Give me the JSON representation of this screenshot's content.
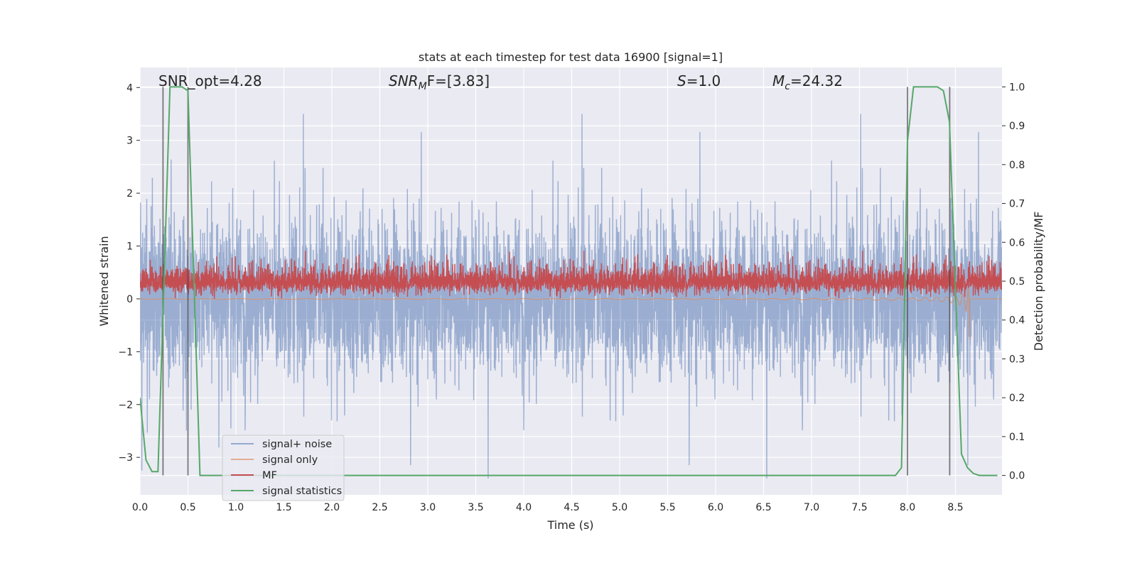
{
  "chart_data": {
    "type": "line",
    "title": "stats at each timestep for test data 16900 [signal=1]",
    "xlabel": "Time (s)",
    "ylabel": "Whitened strain",
    "ylabel_right": "Detection probability/MF",
    "xlim": [
      0,
      8.985
    ],
    "ylim": [
      -3.71,
      4.38
    ],
    "ylim_right": [
      -0.05,
      1.05
    ],
    "grid": true,
    "background": "#eaeaf2",
    "xticks": [
      "0.0",
      "0.5",
      "1.0",
      "1.5",
      "2.0",
      "2.5",
      "3.0",
      "3.5",
      "4.0",
      "4.5",
      "5.0",
      "5.5",
      "6.0",
      "6.5",
      "7.0",
      "7.5",
      "8.0",
      "8.5"
    ],
    "yticks": [
      "4",
      "3",
      "2",
      "1",
      "0",
      "−1",
      "−2",
      "−3"
    ],
    "yticks_right": [
      "1.0",
      "0.9",
      "0.8",
      "0.7",
      "0.6",
      "0.5",
      "0.4",
      "0.3",
      "0.2",
      "0.1",
      "0.0"
    ],
    "legend": {
      "placement": "lower-left",
      "entries": [
        "signal+ noise",
        "signal only",
        "MF",
        "signal statistics"
      ]
    },
    "annotations": {
      "snr_opt": "SNR_opt=4.28",
      "snr_mf_base": "SNR",
      "snr_mf_sub": "M",
      "snr_mf_rest": "F=[3.83]",
      "s_label": "S",
      "s_rest": "=1.0",
      "mc_base": "M",
      "mc_sub": "c",
      "mc_rest": "=24.32"
    },
    "vertical_markers": [
      0.24,
      0.5,
      8.0,
      8.44
    ],
    "series": [
      {
        "name": "signal+ noise",
        "axis": "left",
        "color": "#4c72b0",
        "description_params": {
          "mean": 0.0,
          "std": 0.75,
          "typical_range": [
            -3.4,
            3.5
          ],
          "sample_rate_hz": 512
        }
      },
      {
        "name": "signal only",
        "axis": "left",
        "color": "#dd8452",
        "chirp": {
          "merger_time": 8.65,
          "peak_min": -0.9,
          "peak_max": 0.7
        }
      },
      {
        "name": "MF",
        "axis": "left",
        "color": "#c44e52",
        "description_params": {
          "mean": 0.3,
          "range": [
            0.0,
            1.0
          ]
        }
      },
      {
        "name": "signal statistics",
        "axis": "right",
        "color": "#55a868",
        "x": [
          0,
          0.0625,
          0.125,
          0.1875,
          0.25,
          0.3125,
          0.375,
          0.4375,
          0.5,
          0.5625,
          0.625,
          7.875,
          7.9375,
          8.0,
          8.0625,
          8.3125,
          8.375,
          8.4375,
          8.5,
          8.5625,
          8.625,
          8.6875,
          8.75,
          8.9375
        ],
        "y": [
          0.2,
          0.04,
          0.01,
          0.01,
          0.5,
          1.0,
          1.0,
          1.0,
          0.99,
          0.5,
          0.0,
          0.0,
          0.02,
          0.86,
          1.0,
          1.0,
          0.99,
          0.91,
          0.48,
          0.055,
          0.02,
          0.005,
          0.0,
          0.0
        ]
      }
    ]
  }
}
